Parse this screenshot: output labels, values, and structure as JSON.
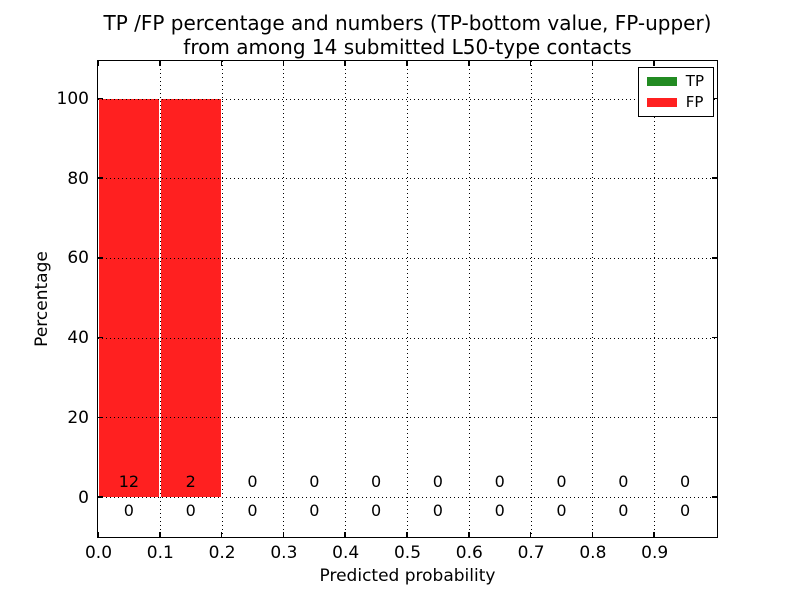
{
  "chart_data": {
    "type": "bar",
    "stacked": true,
    "title_line1": "TP /FP percentage and numbers (TP-bottom value, FP-upper)",
    "title_line2": "from among 14 submitted L50-type contacts",
    "xlabel": "Predicted probability",
    "ylabel": "Percentage",
    "xlim": [
      0.0,
      1.0
    ],
    "ylim": [
      -10.5,
      109.5
    ],
    "grid": "dotted",
    "background": "#ffffff",
    "axis_color": "#000000",
    "legend_position": "upper right",
    "x_tick_labels": [
      "0.0",
      "0.1",
      "0.2",
      "0.3",
      "0.4",
      "0.5",
      "0.6",
      "0.7",
      "0.8",
      "0.9"
    ],
    "y_tick_values": [
      0,
      20,
      40,
      60,
      80,
      100
    ],
    "bin_edges": [
      0.0,
      0.1,
      0.2,
      0.3,
      0.4,
      0.5,
      0.6,
      0.7,
      0.8,
      0.9,
      1.0
    ],
    "series": [
      {
        "name": "TP",
        "color": "#228b22",
        "pct_values": [
          0,
          0,
          0,
          0,
          0,
          0,
          0,
          0,
          0,
          0
        ],
        "counts": [
          0,
          0,
          0,
          0,
          0,
          0,
          0,
          0,
          0,
          0
        ],
        "count_row": "bottom"
      },
      {
        "name": "FP",
        "color": "#ff2020",
        "pct_values": [
          100,
          100,
          0,
          0,
          0,
          0,
          0,
          0,
          0,
          0
        ],
        "counts": [
          12,
          2,
          0,
          0,
          0,
          0,
          0,
          0,
          0,
          0
        ],
        "count_row": "upper"
      }
    ]
  }
}
